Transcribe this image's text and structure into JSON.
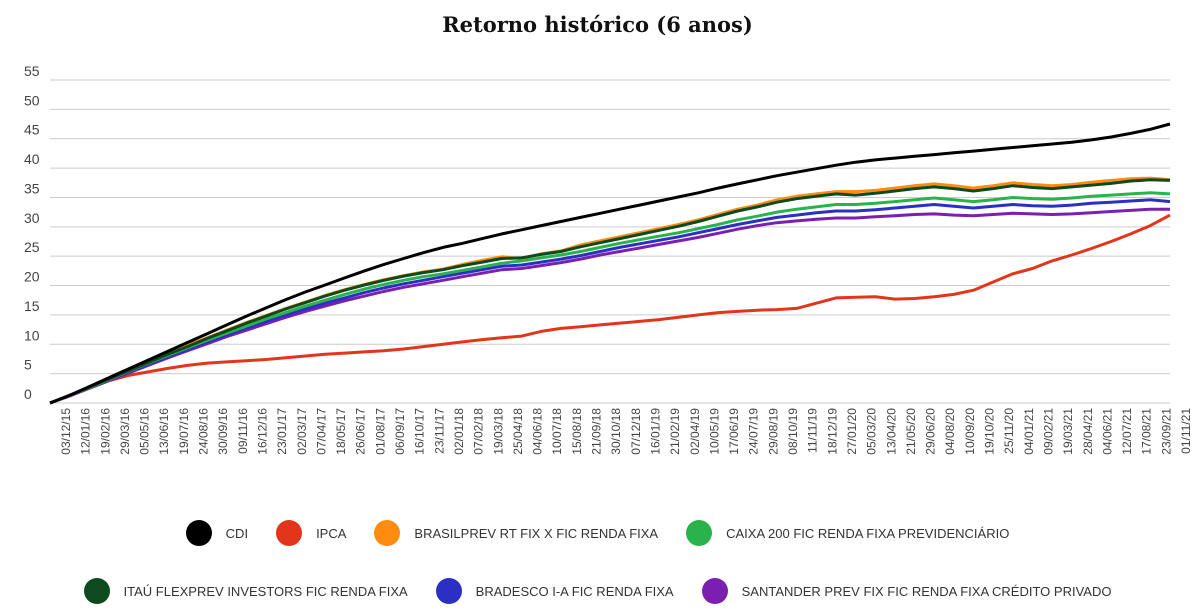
{
  "chart_data": {
    "type": "line",
    "title": "Retorno histórico (6 anos)",
    "ylim": [
      0,
      55
    ],
    "y_ticks": [
      0,
      5,
      10,
      15,
      20,
      25,
      30,
      35,
      40,
      45,
      50,
      55
    ],
    "grid": true,
    "legend_position": "bottom",
    "x": [
      "03/12/15",
      "12/01/16",
      "19/02/16",
      "29/03/16",
      "05/05/16",
      "13/06/16",
      "19/07/16",
      "24/08/16",
      "30/09/16",
      "09/11/16",
      "16/12/16",
      "23/01/17",
      "02/03/17",
      "07/04/17",
      "18/05/17",
      "26/06/17",
      "01/08/17",
      "06/09/17",
      "16/10/17",
      "23/11/17",
      "02/01/18",
      "07/02/18",
      "19/03/18",
      "25/04/18",
      "04/06/18",
      "10/07/18",
      "15/08/18",
      "21/09/18",
      "30/10/18",
      "07/12/18",
      "16/01/19",
      "21/02/19",
      "02/04/19",
      "10/05/19",
      "17/06/19",
      "24/07/19",
      "29/08/19",
      "08/10/19",
      "11/11/19",
      "18/12/19",
      "27/01/20",
      "05/03/20",
      "13/04/20",
      "21/05/20",
      "29/06/20",
      "04/08/20",
      "10/09/20",
      "19/10/20",
      "25/11/20",
      "04/01/21",
      "09/02/21",
      "19/03/21",
      "28/04/21",
      "04/06/21",
      "12/07/21",
      "17/08/21",
      "23/09/21",
      "01/11/21"
    ],
    "series": [
      {
        "name": "CDI",
        "color": "#000000",
        "values": [
          0,
          1.3,
          2.8,
          4.3,
          5.8,
          7.3,
          8.8,
          10.3,
          11.8,
          13.3,
          14.8,
          16.2,
          17.6,
          18.9,
          20.1,
          21.3,
          22.5,
          23.6,
          24.6,
          25.6,
          26.5,
          27.2,
          28.0,
          28.8,
          29.5,
          30.2,
          30.9,
          31.6,
          32.3,
          33.0,
          33.7,
          34.4,
          35.1,
          35.8,
          36.6,
          37.3,
          38.0,
          38.7,
          39.3,
          39.9,
          40.5,
          41.0,
          41.4,
          41.7,
          42.0,
          42.3,
          42.6,
          42.9,
          43.2,
          43.5,
          43.8,
          44.1,
          44.4,
          44.8,
          45.3,
          45.9,
          46.6,
          47.5
        ]
      },
      {
        "name": "IPCA",
        "color": "#e2351b",
        "values": [
          0,
          1.2,
          2.6,
          3.8,
          4.7,
          5.3,
          5.9,
          6.4,
          6.8,
          7.0,
          7.2,
          7.4,
          7.7,
          8.0,
          8.3,
          8.5,
          8.7,
          8.9,
          9.2,
          9.6,
          10.0,
          10.4,
          10.8,
          11.1,
          11.4,
          12.2,
          12.7,
          13.0,
          13.3,
          13.6,
          13.9,
          14.2,
          14.6,
          15.0,
          15.4,
          15.6,
          15.8,
          15.9,
          16.1,
          17.0,
          17.9,
          18.0,
          18.1,
          17.7,
          17.8,
          18.1,
          18.5,
          19.2,
          20.6,
          22.0,
          22.9,
          24.2,
          25.2,
          26.3,
          27.5,
          28.8,
          30.2,
          32.0
        ]
      },
      {
        "name": "BRASILPREV RT FIX X FIC RENDA FIXA",
        "color": "#ff8c0f",
        "values": [
          0,
          1.3,
          2.7,
          4.2,
          5.6,
          7.0,
          8.4,
          9.8,
          11.1,
          12.4,
          13.7,
          14.9,
          16.1,
          17.2,
          18.3,
          19.3,
          20.2,
          21.0,
          21.7,
          22.3,
          22.8,
          23.6,
          24.3,
          24.9,
          24.6,
          25.4,
          25.9,
          26.9,
          27.6,
          28.3,
          29.0,
          29.7,
          30.4,
          31.2,
          32.1,
          33.0,
          33.7,
          34.6,
          35.2,
          35.6,
          36.0,
          36.0,
          36.2,
          36.6,
          37.0,
          37.3,
          37.0,
          36.6,
          37.0,
          37.5,
          37.2,
          37.0,
          37.2,
          37.6,
          37.9,
          38.2,
          38.3,
          38.0
        ]
      },
      {
        "name": "CAIXA 200 FIC RENDA FIXA PREVIDENCIÁRIO",
        "color": "#2ab24b",
        "values": [
          0,
          1.3,
          2.6,
          4.0,
          5.4,
          6.8,
          8.1,
          9.4,
          10.7,
          11.9,
          13.1,
          14.3,
          15.4,
          16.5,
          17.5,
          18.5,
          19.4,
          20.2,
          20.9,
          21.5,
          22.0,
          22.6,
          23.2,
          23.8,
          24.2,
          24.7,
          25.2,
          25.8,
          26.5,
          27.2,
          27.8,
          28.4,
          29.0,
          29.7,
          30.4,
          31.2,
          31.8,
          32.5,
          33.0,
          33.4,
          33.8,
          33.8,
          34.0,
          34.3,
          34.6,
          34.9,
          34.6,
          34.3,
          34.6,
          35.0,
          34.8,
          34.7,
          34.9,
          35.2,
          35.4,
          35.6,
          35.8,
          35.6
        ]
      },
      {
        "name": "ITAÚ FLEXPREV INVESTORS FIC RENDA FIXA",
        "color": "#0d4a1e",
        "values": [
          0,
          1.3,
          2.7,
          4.1,
          5.5,
          6.9,
          8.3,
          9.6,
          11.0,
          12.3,
          13.6,
          14.8,
          16.0,
          17.1,
          18.2,
          19.2,
          20.1,
          20.9,
          21.6,
          22.2,
          22.7,
          23.4,
          24.0,
          24.6,
          24.7,
          25.3,
          25.8,
          26.6,
          27.3,
          28.0,
          28.7,
          29.4,
          30.1,
          30.9,
          31.8,
          32.7,
          33.4,
          34.2,
          34.8,
          35.2,
          35.6,
          35.4,
          35.7,
          36.1,
          36.5,
          36.8,
          36.5,
          36.1,
          36.5,
          37.0,
          36.7,
          36.5,
          36.8,
          37.1,
          37.4,
          37.8,
          38.0,
          37.9
        ]
      },
      {
        "name": "BRADESCO I-A FIC RENDA FIXA",
        "color": "#2b2fc4",
        "values": [
          0,
          1.3,
          2.6,
          4.0,
          5.3,
          6.6,
          7.9,
          9.1,
          10.4,
          11.6,
          12.8,
          13.9,
          15.0,
          16.0,
          17.0,
          17.9,
          18.8,
          19.6,
          20.3,
          20.9,
          21.5,
          22.1,
          22.7,
          23.3,
          23.5,
          24.0,
          24.5,
          25.1,
          25.8,
          26.5,
          27.1,
          27.7,
          28.3,
          29.0,
          29.7,
          30.4,
          31.0,
          31.6,
          32.0,
          32.4,
          32.7,
          32.7,
          32.9,
          33.2,
          33.5,
          33.8,
          33.5,
          33.2,
          33.5,
          33.8,
          33.6,
          33.5,
          33.7,
          34.0,
          34.2,
          34.4,
          34.6,
          34.3
        ]
      },
      {
        "name": "SANTANDER PREV FIX FIC RENDA FIXA CRÉDITO PRIVADO",
        "color": "#7b1fb0",
        "values": [
          0,
          1.2,
          2.5,
          3.8,
          5.1,
          6.4,
          7.7,
          8.9,
          10.1,
          11.3,
          12.4,
          13.5,
          14.6,
          15.6,
          16.5,
          17.4,
          18.2,
          19.0,
          19.7,
          20.3,
          20.9,
          21.5,
          22.1,
          22.7,
          22.9,
          23.4,
          23.9,
          24.5,
          25.2,
          25.8,
          26.4,
          27.0,
          27.6,
          28.2,
          28.9,
          29.6,
          30.2,
          30.7,
          31.0,
          31.3,
          31.5,
          31.5,
          31.7,
          31.9,
          32.1,
          32.2,
          32.0,
          31.9,
          32.1,
          32.3,
          32.2,
          32.1,
          32.2,
          32.4,
          32.6,
          32.8,
          33.0,
          33.0
        ]
      }
    ]
  }
}
